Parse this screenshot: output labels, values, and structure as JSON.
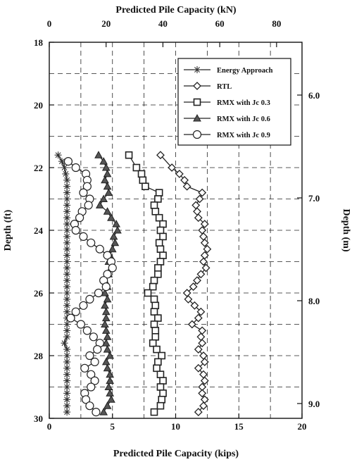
{
  "chart_data": {
    "type": "line",
    "xlabel_bottom": "Predicted Pile Capacity (kips)",
    "xlabel_top": "Predicted Pile Capacity (kN)",
    "ylabel_left": "Depth (ft)",
    "ylabel_right": "Depth (m)",
    "xlim": [
      0,
      20
    ],
    "ylim": [
      18,
      30
    ],
    "y_inverted": true,
    "grid": true,
    "legend_position": "top-right",
    "x_ticks_bottom": [
      0,
      5,
      10,
      15,
      20
    ],
    "x_ticks_top": [
      0,
      20,
      40,
      60,
      80
    ],
    "y_ticks_left": [
      18,
      20,
      22,
      24,
      26,
      28,
      30
    ],
    "y_ticks_right": [
      6.0,
      7.0,
      8.0,
      9.0
    ],
    "series": [
      {
        "name": "Energy Approach",
        "marker": "star",
        "points": [
          [
            0.7,
            21.6
          ],
          [
            1.0,
            21.8
          ],
          [
            1.2,
            22.0
          ],
          [
            1.3,
            22.2
          ],
          [
            1.4,
            22.4
          ],
          [
            1.4,
            22.6
          ],
          [
            1.4,
            22.8
          ],
          [
            1.4,
            23.0
          ],
          [
            1.4,
            23.2
          ],
          [
            1.4,
            23.4
          ],
          [
            1.4,
            23.6
          ],
          [
            1.4,
            23.8
          ],
          [
            1.4,
            24.0
          ],
          [
            1.4,
            24.2
          ],
          [
            1.4,
            24.4
          ],
          [
            1.4,
            24.6
          ],
          [
            1.4,
            24.8
          ],
          [
            1.4,
            25.0
          ],
          [
            1.4,
            25.2
          ],
          [
            1.4,
            25.4
          ],
          [
            1.4,
            25.6
          ],
          [
            1.4,
            25.8
          ],
          [
            1.4,
            26.0
          ],
          [
            1.4,
            26.2
          ],
          [
            1.4,
            26.4
          ],
          [
            1.4,
            26.6
          ],
          [
            1.4,
            26.8
          ],
          [
            1.4,
            27.0
          ],
          [
            1.4,
            27.2
          ],
          [
            1.4,
            27.4
          ],
          [
            1.2,
            27.6
          ],
          [
            1.4,
            27.8
          ],
          [
            1.4,
            28.0
          ],
          [
            1.4,
            28.2
          ],
          [
            1.4,
            28.4
          ],
          [
            1.4,
            28.6
          ],
          [
            1.4,
            28.8
          ],
          [
            1.4,
            29.0
          ],
          [
            1.4,
            29.2
          ],
          [
            1.4,
            29.4
          ],
          [
            1.4,
            29.6
          ],
          [
            1.4,
            29.8
          ]
        ]
      },
      {
        "name": "RTL",
        "marker": "diamond",
        "points": [
          [
            8.8,
            21.6
          ],
          [
            9.7,
            22.0
          ],
          [
            10.3,
            22.2
          ],
          [
            10.7,
            22.4
          ],
          [
            10.9,
            22.6
          ],
          [
            12.1,
            22.8
          ],
          [
            11.9,
            23.0
          ],
          [
            11.6,
            23.2
          ],
          [
            11.7,
            23.4
          ],
          [
            11.8,
            23.6
          ],
          [
            12.3,
            23.8
          ],
          [
            12.1,
            24.0
          ],
          [
            12.2,
            24.2
          ],
          [
            12.3,
            24.4
          ],
          [
            12.5,
            24.6
          ],
          [
            12.3,
            24.8
          ],
          [
            12.2,
            25.0
          ],
          [
            12.4,
            25.2
          ],
          [
            12.0,
            25.4
          ],
          [
            11.7,
            25.6
          ],
          [
            11.4,
            25.8
          ],
          [
            10.9,
            26.0
          ],
          [
            11.0,
            26.2
          ],
          [
            11.5,
            26.4
          ],
          [
            12.0,
            26.6
          ],
          [
            11.8,
            26.8
          ],
          [
            11.3,
            27.0
          ],
          [
            12.1,
            27.2
          ],
          [
            12.0,
            27.4
          ],
          [
            12.1,
            27.6
          ],
          [
            11.8,
            27.8
          ],
          [
            12.2,
            28.0
          ],
          [
            12.3,
            28.2
          ],
          [
            11.8,
            28.4
          ],
          [
            12.2,
            28.6
          ],
          [
            12.3,
            28.8
          ],
          [
            12.1,
            29.0
          ],
          [
            12.1,
            29.2
          ],
          [
            12.3,
            29.4
          ],
          [
            12.2,
            29.6
          ],
          [
            11.8,
            29.8
          ]
        ]
      },
      {
        "name": "RMX with Jc 0.3",
        "marker": "square",
        "points": [
          [
            6.3,
            21.6
          ],
          [
            6.9,
            22.0
          ],
          [
            7.3,
            22.2
          ],
          [
            7.4,
            22.4
          ],
          [
            7.6,
            22.6
          ],
          [
            8.7,
            22.8
          ],
          [
            8.6,
            23.0
          ],
          [
            8.3,
            23.2
          ],
          [
            8.4,
            23.4
          ],
          [
            8.7,
            23.6
          ],
          [
            9.0,
            23.8
          ],
          [
            8.8,
            24.0
          ],
          [
            9.0,
            24.2
          ],
          [
            8.7,
            24.4
          ],
          [
            8.8,
            24.6
          ],
          [
            9.0,
            24.8
          ],
          [
            8.8,
            25.0
          ],
          [
            8.6,
            25.2
          ],
          [
            8.6,
            25.4
          ],
          [
            8.3,
            25.6
          ],
          [
            8.2,
            25.8
          ],
          [
            7.8,
            26.0
          ],
          [
            8.3,
            26.2
          ],
          [
            8.4,
            26.4
          ],
          [
            8.3,
            26.6
          ],
          [
            8.6,
            26.8
          ],
          [
            8.3,
            27.0
          ],
          [
            8.4,
            27.2
          ],
          [
            8.4,
            27.4
          ],
          [
            8.2,
            27.6
          ],
          [
            8.5,
            27.8
          ],
          [
            8.9,
            28.0
          ],
          [
            8.6,
            28.2
          ],
          [
            8.5,
            28.4
          ],
          [
            8.8,
            28.6
          ],
          [
            9.0,
            28.8
          ],
          [
            8.8,
            29.0
          ],
          [
            9.0,
            29.2
          ],
          [
            8.9,
            29.4
          ],
          [
            8.8,
            29.6
          ],
          [
            8.3,
            29.8
          ]
        ]
      },
      {
        "name": "RMX with Jc 0.6",
        "marker": "triangle",
        "points": [
          [
            3.9,
            21.6
          ],
          [
            4.3,
            21.8
          ],
          [
            4.5,
            22.0
          ],
          [
            4.6,
            22.2
          ],
          [
            4.4,
            22.4
          ],
          [
            4.6,
            22.6
          ],
          [
            4.7,
            22.8
          ],
          [
            4.3,
            23.0
          ],
          [
            4.0,
            23.2
          ],
          [
            4.6,
            23.4
          ],
          [
            4.9,
            23.6
          ],
          [
            5.3,
            23.8
          ],
          [
            5.4,
            24.0
          ],
          [
            5.1,
            24.2
          ],
          [
            5.2,
            24.4
          ],
          [
            5.0,
            24.6
          ],
          [
            4.8,
            24.8
          ],
          [
            4.7,
            25.0
          ],
          [
            4.9,
            25.2
          ],
          [
            4.7,
            25.4
          ],
          [
            4.4,
            25.6
          ],
          [
            4.6,
            25.8
          ],
          [
            4.4,
            26.0
          ],
          [
            4.6,
            26.2
          ],
          [
            4.4,
            26.4
          ],
          [
            4.5,
            26.6
          ],
          [
            4.5,
            26.8
          ],
          [
            4.4,
            27.0
          ],
          [
            4.5,
            27.2
          ],
          [
            4.6,
            27.4
          ],
          [
            4.5,
            27.6
          ],
          [
            4.6,
            27.8
          ],
          [
            4.8,
            28.0
          ],
          [
            4.5,
            28.2
          ],
          [
            4.6,
            28.4
          ],
          [
            4.8,
            28.6
          ],
          [
            4.8,
            28.8
          ],
          [
            4.7,
            29.0
          ],
          [
            4.8,
            29.2
          ],
          [
            4.9,
            29.4
          ],
          [
            4.6,
            29.6
          ],
          [
            4.3,
            29.8
          ]
        ]
      },
      {
        "name": "RMX with Jc 0.9",
        "marker": "circle",
        "points": [
          [
            1.5,
            21.8
          ],
          [
            2.1,
            22.0
          ],
          [
            2.9,
            22.2
          ],
          [
            3.0,
            22.4
          ],
          [
            3.0,
            22.6
          ],
          [
            2.7,
            22.8
          ],
          [
            3.2,
            23.0
          ],
          [
            3.1,
            23.2
          ],
          [
            2.6,
            23.4
          ],
          [
            2.4,
            23.6
          ],
          [
            2.0,
            23.8
          ],
          [
            2.1,
            24.0
          ],
          [
            2.7,
            24.2
          ],
          [
            3.3,
            24.4
          ],
          [
            4.0,
            24.6
          ],
          [
            4.6,
            24.8
          ],
          [
            4.9,
            25.0
          ],
          [
            5.0,
            25.2
          ],
          [
            4.6,
            25.4
          ],
          [
            4.3,
            25.6
          ],
          [
            4.5,
            25.8
          ],
          [
            3.9,
            26.0
          ],
          [
            3.2,
            26.2
          ],
          [
            2.7,
            26.4
          ],
          [
            2.1,
            26.6
          ],
          [
            1.7,
            26.8
          ],
          [
            2.5,
            27.0
          ],
          [
            3.0,
            27.2
          ],
          [
            3.5,
            27.4
          ],
          [
            4.0,
            27.6
          ],
          [
            3.8,
            27.8
          ],
          [
            3.2,
            28.0
          ],
          [
            3.6,
            28.2
          ],
          [
            2.8,
            28.4
          ],
          [
            3.3,
            28.6
          ],
          [
            3.6,
            28.8
          ],
          [
            3.3,
            29.0
          ],
          [
            2.8,
            29.2
          ],
          [
            2.9,
            29.4
          ],
          [
            3.2,
            29.6
          ],
          [
            3.7,
            29.8
          ]
        ]
      }
    ]
  }
}
